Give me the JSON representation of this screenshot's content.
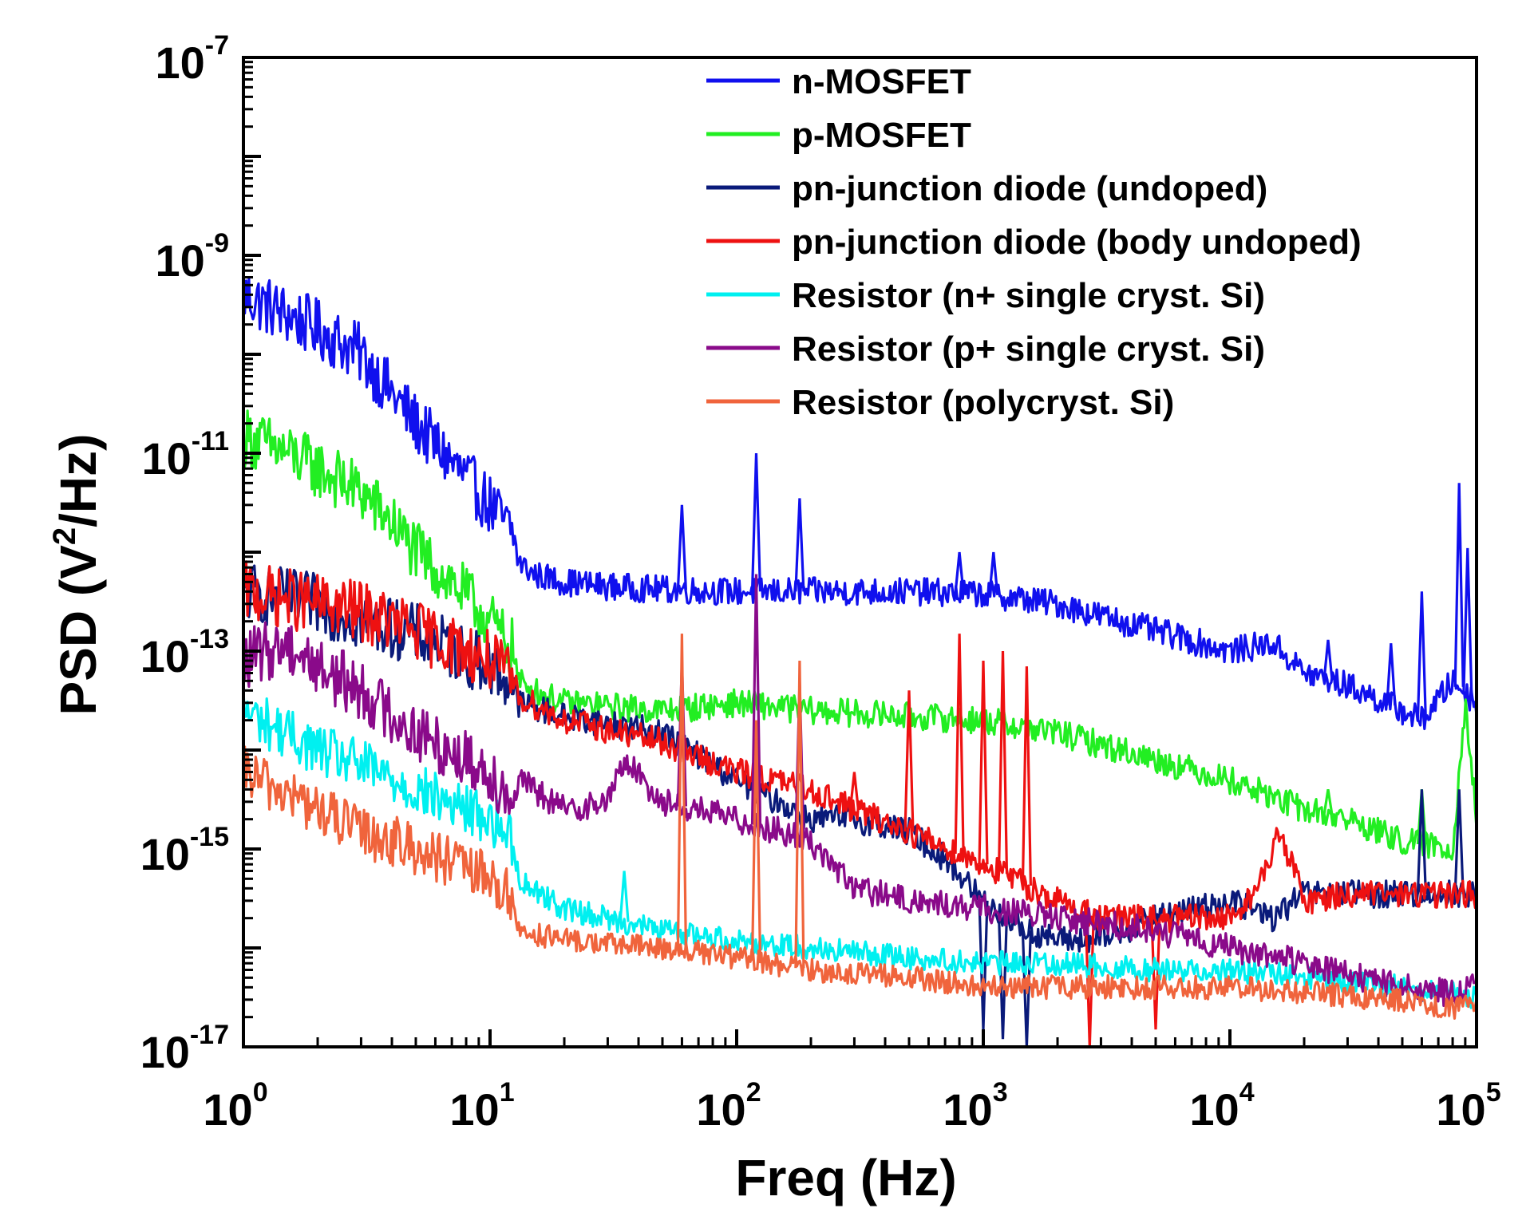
{
  "chart_data": {
    "type": "line",
    "title": "",
    "xlabel": "Freq (Hz)",
    "ylabel_parts": {
      "base": "PSD (V",
      "sup": "2",
      "tail": "/Hz)"
    },
    "ylabel": "PSD (V2/Hz)",
    "x_scale": "log",
    "y_scale": "log",
    "xlim": [
      1,
      100000
    ],
    "ylim": [
      1e-17,
      1e-07
    ],
    "x_ticks": [
      {
        "value": 1,
        "base": "10",
        "exp": "0"
      },
      {
        "value": 10,
        "base": "10",
        "exp": "1"
      },
      {
        "value": 100,
        "base": "10",
        "exp": "2"
      },
      {
        "value": 1000,
        "base": "10",
        "exp": "3"
      },
      {
        "value": 10000,
        "base": "10",
        "exp": "4"
      },
      {
        "value": 100000,
        "base": "10",
        "exp": "5"
      }
    ],
    "y_ticks": [
      {
        "value": 1e-07,
        "base": "10",
        "exp": "-7"
      },
      {
        "value": 1e-09,
        "base": "10",
        "exp": "-9"
      },
      {
        "value": 1e-11,
        "base": "10",
        "exp": "-11"
      },
      {
        "value": 1e-13,
        "base": "10",
        "exp": "-13"
      },
      {
        "value": 1e-15,
        "base": "10",
        "exp": "-15"
      },
      {
        "value": 1e-17,
        "base": "10",
        "exp": "-17"
      }
    ],
    "grid": false,
    "legend_position": "top-right",
    "series": [
      {
        "name": "n-MOSFET",
        "color": "#1010ee",
        "x": [
          1,
          1.5,
          2,
          3,
          4,
          5,
          7,
          10,
          12.5,
          13,
          15,
          20,
          30,
          50,
          100,
          200,
          500,
          1000,
          2000,
          5000,
          10000,
          15000,
          20000,
          30000,
          50000,
          60000,
          80000,
          100000
        ],
        "y": [
          4e-10,
          2.5e-10,
          1.8e-10,
          1e-10,
          4e-11,
          2e-11,
          8e-12,
          3e-12,
          1.5e-12,
          8e-13,
          6e-13,
          5e-13,
          4.5e-13,
          4.2e-13,
          4e-13,
          4e-13,
          4e-13,
          3.8e-13,
          3e-13,
          1.6e-13,
          1e-13,
          1.2e-13,
          6e-14,
          4.5e-14,
          2.5e-14,
          2e-14,
          5e-14,
          3e-14
        ],
        "spikes": [
          {
            "x": 60,
            "y": 3e-12
          },
          {
            "x": 120,
            "y": 1e-11
          },
          {
            "x": 180,
            "y": 3.5e-12
          },
          {
            "x": 800,
            "y": 1e-12
          },
          {
            "x": 1100,
            "y": 1e-12
          },
          {
            "x": 25000,
            "y": 1.3e-13
          },
          {
            "x": 45000,
            "y": 1.2e-13
          },
          {
            "x": 60000,
            "y": 4e-13
          },
          {
            "x": 85000,
            "y": 5e-12
          },
          {
            "x": 92000,
            "y": 1.1e-12
          }
        ]
      },
      {
        "name": "p-MOSFET",
        "color": "#22ee22",
        "x": [
          1,
          1.5,
          2,
          3,
          4,
          5,
          7,
          10,
          12.5,
          13,
          15,
          20,
          50,
          100,
          200,
          500,
          1000,
          2000,
          5000,
          10000,
          20000,
          30000,
          50000,
          80000,
          90000,
          100000
        ],
        "y": [
          1.5e-11,
          1e-11,
          7e-12,
          4e-12,
          2e-12,
          1e-12,
          5e-13,
          2e-13,
          1e-13,
          5e-14,
          4e-14,
          3e-14,
          2.5e-14,
          3e-14,
          2.5e-14,
          2.2e-14,
          2e-14,
          1.5e-14,
          8e-15,
          5e-15,
          2.5e-15,
          2e-15,
          1.2e-15,
          1e-15,
          3e-14,
          2e-15
        ],
        "spikes": [
          {
            "x": 25000,
            "y": 4e-15
          },
          {
            "x": 60000,
            "y": 4e-15
          }
        ]
      },
      {
        "name": "pn-junction diode (undoped)",
        "color": "#0a1a7a",
        "x": [
          1,
          2,
          3,
          5,
          10,
          12.5,
          13,
          20,
          50,
          100,
          200,
          300,
          500,
          700,
          1000,
          1500,
          2000,
          3000,
          5000,
          10000,
          15000,
          20000,
          50000,
          80000,
          100000
        ],
        "y": [
          4e-13,
          3e-13,
          2e-13,
          1.5e-13,
          7e-14,
          4.5e-14,
          3e-14,
          2.2e-14,
          1.5e-14,
          5e-15,
          2e-15,
          2e-15,
          1.5e-15,
          8e-16,
          3e-16,
          1.5e-16,
          1.2e-16,
          1.2e-16,
          2e-16,
          3e-16,
          2e-16,
          3.5e-16,
          3.5e-16,
          3.5e-16,
          3.5e-16
        ],
        "spikes": [
          {
            "x": 1000,
            "y": 1.5e-17
          },
          {
            "x": 1200,
            "y": 1.2e-17
          },
          {
            "x": 1500,
            "y": 1e-17
          },
          {
            "x": 60000,
            "y": 4e-15
          },
          {
            "x": 85000,
            "y": 4e-15
          }
        ]
      },
      {
        "name": "pn-junction diode (body undoped)",
        "color": "#ee1111",
        "x": [
          1,
          2,
          3,
          5,
          10,
          12.5,
          13,
          20,
          50,
          100,
          200,
          300,
          500,
          1000,
          2000,
          3000,
          5000,
          10000,
          13000,
          16000,
          20000,
          30000,
          50000,
          80000,
          100000
        ],
        "y": [
          4e-13,
          3e-13,
          2.5e-13,
          1.6e-13,
          8e-14,
          5e-14,
          3.5e-14,
          2e-14,
          1.2e-14,
          6e-15,
          4e-15,
          2.5e-15,
          1.5e-15,
          7e-16,
          3e-16,
          2e-16,
          2e-16,
          2e-16,
          4e-16,
          1.5e-15,
          3e-16,
          3.5e-16,
          3.5e-16,
          3.5e-16,
          3.5e-16
        ],
        "spikes": [
          {
            "x": 300,
            "y": 6e-15
          },
          {
            "x": 500,
            "y": 4e-14
          },
          {
            "x": 800,
            "y": 1.5e-13
          },
          {
            "x": 1000,
            "y": 8e-14
          },
          {
            "x": 1200,
            "y": 1e-13
          },
          {
            "x": 1500,
            "y": 7e-14
          },
          {
            "x": 2700,
            "y": 1e-17
          },
          {
            "x": 5000,
            "y": 1.5e-17
          }
        ]
      },
      {
        "name": "Resistor (n+ single cryst. Si)",
        "color": "#00f0f0",
        "x": [
          1,
          2,
          3,
          5,
          10,
          12.5,
          13,
          20,
          50,
          100,
          200,
          500,
          1000,
          2000,
          5000,
          10000,
          20000,
          50000,
          80000,
          100000
        ],
        "y": [
          2.5e-14,
          1e-14,
          7e-15,
          4e-15,
          2e-15,
          1.2e-15,
          5e-16,
          2.5e-16,
          1.5e-16,
          1.2e-16,
          1e-16,
          8e-17,
          7e-17,
          7e-17,
          6e-17,
          6e-17,
          5e-17,
          4e-17,
          3.5e-17,
          3e-17
        ],
        "spikes": [
          {
            "x": 35,
            "y": 6e-16
          }
        ]
      },
      {
        "name": "Resistor (p+ single cryst. Si)",
        "color": "#8a0a8a",
        "x": [
          1,
          1.5,
          2,
          3,
          5,
          10,
          12.5,
          13,
          20,
          30,
          35,
          50,
          100,
          150,
          200,
          300,
          500,
          1000,
          2000,
          5000,
          10000,
          20000,
          50000,
          80000,
          100000
        ],
        "y": [
          8e-14,
          1.2e-13,
          7e-14,
          4e-14,
          1.5e-14,
          6e-15,
          3e-15,
          5e-15,
          2.5e-15,
          3e-15,
          8e-15,
          3e-15,
          2e-15,
          1.5e-15,
          1.2e-15,
          4e-16,
          3e-16,
          2.5e-16,
          2e-16,
          1.5e-16,
          1e-16,
          7e-17,
          4e-17,
          3.5e-17,
          4e-17
        ],
        "spikes": [
          {
            "x": 60,
            "y": 8e-14
          },
          {
            "x": 120,
            "y": 6e-13
          },
          {
            "x": 180,
            "y": 5e-14
          }
        ]
      },
      {
        "name": "Resistor (polycryst. Si)",
        "color": "#f0643c",
        "x": [
          1,
          2,
          3,
          5,
          10,
          12.5,
          13,
          20,
          50,
          100,
          200,
          500,
          1000,
          2000,
          5000,
          10000,
          20000,
          50000,
          80000,
          100000
        ],
        "y": [
          6e-15,
          2.5e-15,
          1.5e-15,
          1e-15,
          5e-16,
          3e-16,
          1.5e-16,
          1.2e-16,
          1e-16,
          8e-17,
          6e-17,
          5e-17,
          4e-17,
          4e-17,
          4e-17,
          4e-17,
          3.5e-17,
          3e-17,
          2.5e-17,
          2.5e-17
        ],
        "spikes": [
          {
            "x": 60,
            "y": 1.5e-13
          },
          {
            "x": 120,
            "y": 2e-14
          },
          {
            "x": 180,
            "y": 8e-14
          }
        ]
      }
    ]
  }
}
